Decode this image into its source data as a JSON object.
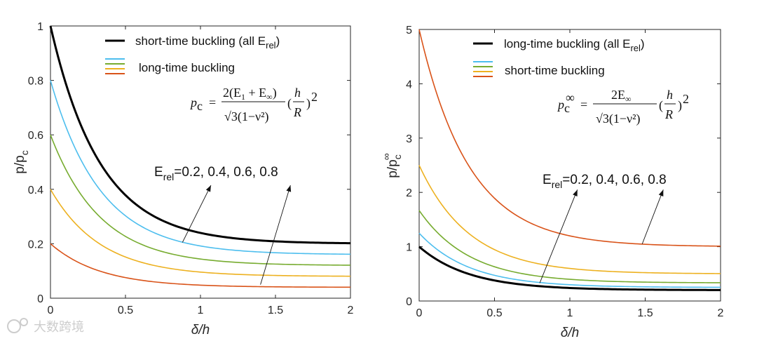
{
  "watermark": "大数跨境",
  "colors": {
    "black": "#000000",
    "blue": "#4dbeee",
    "green": "#77ac30",
    "yellow": "#edb120",
    "orange": "#d95319"
  },
  "chart_data": [
    {
      "type": "line",
      "xlabel": "δ/h",
      "ylabel": "p/p",
      "ylabel_sub": "c",
      "xlim": [
        0,
        2
      ],
      "ylim": [
        0,
        1
      ],
      "xticks": [
        "0",
        "0.5",
        "1",
        "1.5",
        "2"
      ],
      "xtick_values": [
        0,
        0.5,
        1,
        1.5,
        2
      ],
      "yticks": [
        "0",
        "0.2",
        "0.4",
        "0.6",
        "0.8",
        "1"
      ],
      "ytick_values": [
        0,
        0.2,
        0.4,
        0.6,
        0.8,
        1
      ],
      "legend": [
        {
          "label": "short-time buckling (all E",
          "sub": "rel",
          "tail": ")",
          "color": "#000000"
        },
        {
          "label": "long-time buckling",
          "colors": [
            "#4dbeee",
            "#77ac30",
            "#edb120",
            "#d95319"
          ]
        }
      ],
      "equation": {
        "lhs": "p",
        "lhs_sub": "c",
        "numerator": "2(E",
        "num_sub1": "1",
        "num_mid": " + E",
        "num_sub2": "∞",
        "num_tail": ")",
        "denominator": "√3(1−ν²)",
        "factor_top": "h",
        "factor_bottom": "R",
        "exponent": "2"
      },
      "annotation": {
        "prefix": "E",
        "sub": "rel",
        "text": "=0.2, 0.4, 0.6, 0.8"
      },
      "series": [
        {
          "name": "short-time buckling",
          "color": "#000000",
          "width": 3,
          "start": 1.0,
          "end": 0.2,
          "k": 3.0,
          "points": [
            [
              0,
              1.0
            ],
            [
              0.25,
              0.59
            ],
            [
              0.5,
              0.4
            ],
            [
              0.75,
              0.3
            ],
            [
              1,
              0.25
            ],
            [
              1.5,
              0.213
            ],
            [
              2,
              0.203
            ]
          ]
        },
        {
          "name": "E_rel=0.8",
          "color": "#4dbeee",
          "width": 1.6,
          "start": 0.8,
          "end": 0.16,
          "k": 3.0,
          "points": [
            [
              0,
              0.8
            ],
            [
              0.5,
              0.32
            ],
            [
              1,
              0.2
            ],
            [
              1.5,
              0.17
            ],
            [
              2,
              0.162
            ]
          ]
        },
        {
          "name": "E_rel=0.6",
          "color": "#77ac30",
          "width": 1.6,
          "start": 0.6,
          "end": 0.12,
          "k": 3.0,
          "points": [
            [
              0,
              0.6
            ],
            [
              0.5,
              0.24
            ],
            [
              1,
              0.15
            ],
            [
              1.5,
              0.128
            ],
            [
              2,
              0.122
            ]
          ]
        },
        {
          "name": "E_rel=0.4",
          "color": "#edb120",
          "width": 1.6,
          "start": 0.4,
          "end": 0.08,
          "k": 3.0,
          "points": [
            [
              0,
              0.4
            ],
            [
              0.5,
              0.16
            ],
            [
              1,
              0.1
            ],
            [
              1.5,
              0.085
            ],
            [
              2,
              0.081
            ]
          ]
        },
        {
          "name": "E_rel=0.2",
          "color": "#d95319",
          "width": 1.6,
          "start": 0.2,
          "end": 0.04,
          "k": 3.0,
          "points": [
            [
              0,
              0.2
            ],
            [
              0.5,
              0.08
            ],
            [
              1,
              0.05
            ],
            [
              1.5,
              0.043
            ],
            [
              2,
              0.041
            ]
          ]
        }
      ],
      "arrows": [
        {
          "from": [
            0.88,
            0.205
          ],
          "to": [
            1.07,
            0.415
          ]
        },
        {
          "from": [
            1.4,
            0.05
          ],
          "to": [
            1.6,
            0.415
          ]
        }
      ]
    },
    {
      "type": "line",
      "xlabel": "δ/h",
      "ylabel": "p/p",
      "ylabel_sub": "c",
      "ylabel_sup": "∞",
      "xlim": [
        0,
        2
      ],
      "ylim": [
        0,
        5
      ],
      "xticks": [
        "0",
        "0.5",
        "1",
        "1.5",
        "2"
      ],
      "xtick_values": [
        0,
        0.5,
        1,
        1.5,
        2
      ],
      "yticks": [
        "0",
        "1",
        "2",
        "3",
        "4",
        "5"
      ],
      "ytick_values": [
        0,
        1,
        2,
        3,
        4,
        5
      ],
      "legend": [
        {
          "label": "long-time buckling (all E",
          "sub": "rel",
          "tail": ")",
          "color": "#000000"
        },
        {
          "label": "short-time buckling",
          "colors": [
            "#4dbeee",
            "#77ac30",
            "#edb120",
            "#d95319"
          ]
        }
      ],
      "equation": {
        "lhs": "p",
        "lhs_sub": "c",
        "lhs_sup": "∞",
        "numerator": "2E",
        "num_sub2": "∞",
        "denominator": "√3(1−ν²)",
        "factor_top": "h",
        "factor_bottom": "R",
        "exponent": "2"
      },
      "annotation": {
        "prefix": "E",
        "sub": "rel",
        "text": "=0.2, 0.4, 0.6, 0.8"
      },
      "series": [
        {
          "name": "long-time buckling",
          "color": "#000000",
          "width": 3,
          "start": 1.0,
          "end": 0.2,
          "k": 3.0,
          "points": [
            [
              0,
              1.0
            ],
            [
              0.5,
              0.4
            ],
            [
              1,
              0.25
            ],
            [
              1.5,
              0.213
            ],
            [
              2,
              0.203
            ]
          ]
        },
        {
          "name": "E_rel=0.8",
          "color": "#4dbeee",
          "width": 1.6,
          "start": 1.25,
          "end": 0.25,
          "k": 3.0,
          "points": [
            [
              0,
              1.25
            ],
            [
              0.5,
              0.5
            ],
            [
              1,
              0.31
            ],
            [
              1.5,
              0.266
            ],
            [
              2,
              0.254
            ]
          ]
        },
        {
          "name": "E_rel=0.6",
          "color": "#77ac30",
          "width": 1.6,
          "start": 1.667,
          "end": 0.333,
          "k": 3.0,
          "points": [
            [
              0,
              1.667
            ],
            [
              0.5,
              0.67
            ],
            [
              1,
              0.41
            ],
            [
              1.5,
              0.355
            ],
            [
              2,
              0.338
            ]
          ]
        },
        {
          "name": "E_rel=0.4",
          "color": "#edb120",
          "width": 1.6,
          "start": 2.5,
          "end": 0.5,
          "k": 3.0,
          "points": [
            [
              0,
              2.5
            ],
            [
              0.5,
              1.0
            ],
            [
              1,
              0.62
            ],
            [
              1.5,
              0.53
            ],
            [
              2,
              0.507
            ]
          ]
        },
        {
          "name": "E_rel=0.2",
          "color": "#d95319",
          "width": 1.6,
          "start": 5.0,
          "end": 1.0,
          "k": 3.0,
          "points": [
            [
              0,
              5.0
            ],
            [
              0.5,
              2.0
            ],
            [
              1,
              1.25
            ],
            [
              1.5,
              1.06
            ],
            [
              2,
              1.01
            ]
          ]
        }
      ],
      "arrows": [
        {
          "from": [
            0.8,
            0.33
          ],
          "to": [
            1.05,
            2.05
          ]
        },
        {
          "from": [
            1.48,
            1.05
          ],
          "to": [
            1.62,
            2.05
          ]
        }
      ]
    }
  ]
}
